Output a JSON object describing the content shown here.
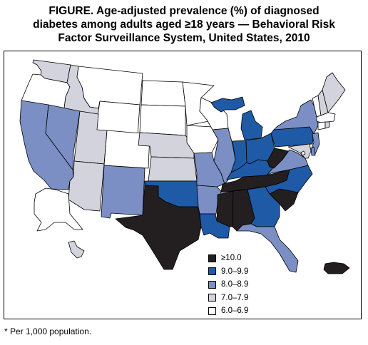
{
  "figure": {
    "title_lines": [
      "FIGURE. Age-adjusted prevalence (%) of diagnosed",
      "diabetes among adults aged ≥18 years — Behavioral Risk",
      "Factor Surveillance System, United States, 2010"
    ],
    "footnote": "* Per 1,000 population."
  },
  "legend": {
    "items": [
      {
        "label": "≥10.0",
        "color": "#231f20"
      },
      {
        "label": "9.0–9.9",
        "color": "#1f5aa6"
      },
      {
        "label": "8.0–8.9",
        "color": "#7b8fc4"
      },
      {
        "label": "7.0–7.9",
        "color": "#d3d3dd"
      },
      {
        "label": "6.0–6.9",
        "color": "#ffffff"
      }
    ]
  },
  "map_data": {
    "class_colors": [
      "#231f20",
      "#1f5aa6",
      "#7b8fc4",
      "#d3d3dd",
      "#ffffff"
    ],
    "states": [
      {
        "id": "WA",
        "cls": 3
      },
      {
        "id": "OR",
        "cls": 4
      },
      {
        "id": "CA",
        "cls": 2
      },
      {
        "id": "ID",
        "cls": 3
      },
      {
        "id": "NV",
        "cls": 2
      },
      {
        "id": "MT",
        "cls": 4
      },
      {
        "id": "WY",
        "cls": 4
      },
      {
        "id": "UT",
        "cls": 3
      },
      {
        "id": "AZ",
        "cls": 3
      },
      {
        "id": "CO",
        "cls": 4
      },
      {
        "id": "NM",
        "cls": 2
      },
      {
        "id": "ND",
        "cls": 4
      },
      {
        "id": "SD",
        "cls": 4
      },
      {
        "id": "NE",
        "cls": 3
      },
      {
        "id": "KS",
        "cls": 3
      },
      {
        "id": "OK",
        "cls": 1
      },
      {
        "id": "TX",
        "cls": 0
      },
      {
        "id": "MN",
        "cls": 4
      },
      {
        "id": "IA",
        "cls": 4
      },
      {
        "id": "MO",
        "cls": 2
      },
      {
        "id": "AR",
        "cls": 2
      },
      {
        "id": "LA",
        "cls": 1
      },
      {
        "id": "WI",
        "cls": 4
      },
      {
        "id": "IL",
        "cls": 2
      },
      {
        "id": "MI",
        "cls": 1
      },
      {
        "id": "UP",
        "cls": 1
      },
      {
        "id": "IN",
        "cls": 1
      },
      {
        "id": "OH",
        "cls": 1
      },
      {
        "id": "KY",
        "cls": 1
      },
      {
        "id": "TN",
        "cls": 0
      },
      {
        "id": "MS",
        "cls": 0
      },
      {
        "id": "AL",
        "cls": 0
      },
      {
        "id": "GA",
        "cls": 1
      },
      {
        "id": "FL",
        "cls": 2
      },
      {
        "id": "SC",
        "cls": 0
      },
      {
        "id": "NC",
        "cls": 1
      },
      {
        "id": "VA",
        "cls": 2
      },
      {
        "id": "WV",
        "cls": 0
      },
      {
        "id": "PA",
        "cls": 1
      },
      {
        "id": "NY",
        "cls": 2
      },
      {
        "id": "VT",
        "cls": 4
      },
      {
        "id": "NH",
        "cls": 3
      },
      {
        "id": "ME",
        "cls": 3
      },
      {
        "id": "MA",
        "cls": 4
      },
      {
        "id": "CT",
        "cls": 4
      },
      {
        "id": "RI",
        "cls": 3
      },
      {
        "id": "NJ",
        "cls": 2
      },
      {
        "id": "DE",
        "cls": 2
      },
      {
        "id": "MD",
        "cls": 3
      },
      {
        "id": "DC",
        "cls": 4
      },
      {
        "id": "AK",
        "cls": 4
      },
      {
        "id": "HI",
        "cls": 3
      },
      {
        "id": "PR",
        "cls": 0
      }
    ]
  }
}
